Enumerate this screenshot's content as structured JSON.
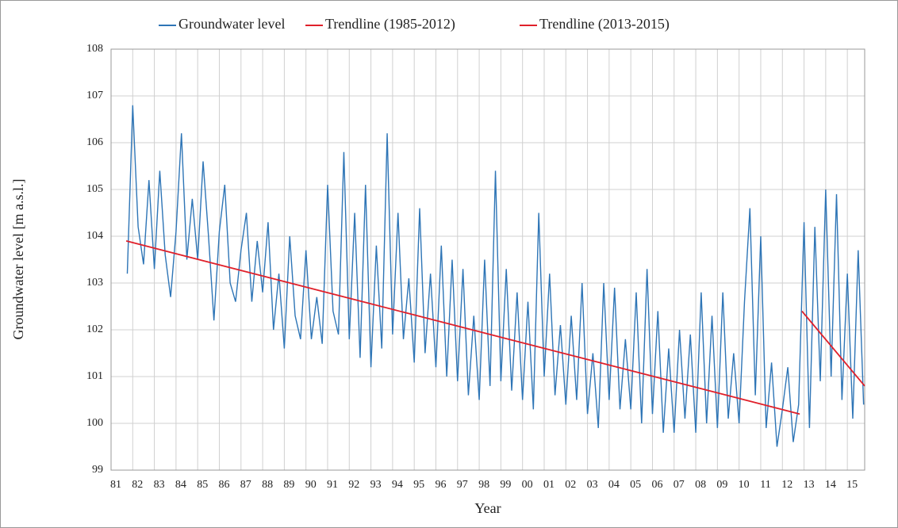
{
  "chart_data": {
    "type": "line",
    "y_label": "Groundwater level [m a.s.l.]",
    "x_label": "Year",
    "xlim": [
      1981,
      2015.8
    ],
    "ylim": [
      99,
      108
    ],
    "xticks": [
      {
        "value": 1981,
        "label": "81"
      },
      {
        "value": 1982,
        "label": "82"
      },
      {
        "value": 1983,
        "label": "83"
      },
      {
        "value": 1984,
        "label": "84"
      },
      {
        "value": 1985,
        "label": "85"
      },
      {
        "value": 1986,
        "label": "86"
      },
      {
        "value": 1987,
        "label": "87"
      },
      {
        "value": 1988,
        "label": "88"
      },
      {
        "value": 1989,
        "label": "89"
      },
      {
        "value": 1990,
        "label": "90"
      },
      {
        "value": 1991,
        "label": "91"
      },
      {
        "value": 1992,
        "label": "92"
      },
      {
        "value": 1993,
        "label": "93"
      },
      {
        "value": 1994,
        "label": "94"
      },
      {
        "value": 1995,
        "label": "95"
      },
      {
        "value": 1996,
        "label": "96"
      },
      {
        "value": 1997,
        "label": "97"
      },
      {
        "value": 1998,
        "label": "98"
      },
      {
        "value": 1999,
        "label": "99"
      },
      {
        "value": 2000,
        "label": "00"
      },
      {
        "value": 2001,
        "label": "01"
      },
      {
        "value": 2002,
        "label": "02"
      },
      {
        "value": 2003,
        "label": "03"
      },
      {
        "value": 2004,
        "label": "04"
      },
      {
        "value": 2005,
        "label": "05"
      },
      {
        "value": 2006,
        "label": "06"
      },
      {
        "value": 2007,
        "label": "07"
      },
      {
        "value": 2008,
        "label": "08"
      },
      {
        "value": 2009,
        "label": "09"
      },
      {
        "value": 2010,
        "label": "10"
      },
      {
        "value": 2011,
        "label": "11"
      },
      {
        "value": 2012,
        "label": "12"
      },
      {
        "value": 2013,
        "label": "13"
      },
      {
        "value": 2014,
        "label": "14"
      },
      {
        "value": 2015,
        "label": "15"
      }
    ],
    "yticks": [
      99,
      100,
      101,
      102,
      103,
      104,
      105,
      106,
      107,
      108
    ],
    "grid": true,
    "legend": "top",
    "series": [
      {
        "name": "Groundwater level",
        "color": "#2e75b6",
        "x": [
          1981.75,
          1982,
          1982.25,
          1982.5,
          1982.75,
          1983,
          1983.25,
          1983.5,
          1983.75,
          1984,
          1984.25,
          1984.5,
          1984.75,
          1985,
          1985.25,
          1985.5,
          1985.75,
          1986,
          1986.25,
          1986.5,
          1986.75,
          1987,
          1987.25,
          1987.5,
          1987.75,
          1988,
          1988.25,
          1988.5,
          1988.75,
          1989,
          1989.25,
          1989.5,
          1989.75,
          1990,
          1990.25,
          1990.5,
          1990.75,
          1991,
          1991.25,
          1991.5,
          1991.75,
          1992,
          1992.25,
          1992.5,
          1992.75,
          1993,
          1993.25,
          1993.5,
          1993.75,
          1994,
          1994.25,
          1994.5,
          1994.75,
          1995,
          1995.25,
          1995.5,
          1995.75,
          1996,
          1996.25,
          1996.5,
          1996.75,
          1997,
          1997.25,
          1997.5,
          1997.75,
          1998,
          1998.25,
          1998.5,
          1998.75,
          1999,
          1999.25,
          1999.5,
          1999.75,
          2000,
          2000.25,
          2000.5,
          2000.75,
          2001,
          2001.25,
          2001.5,
          2001.75,
          2002,
          2002.25,
          2002.5,
          2002.75,
          2003,
          2003.25,
          2003.5,
          2003.75,
          2004,
          2004.25,
          2004.5,
          2004.75,
          2005,
          2005.25,
          2005.5,
          2005.75,
          2006,
          2006.25,
          2006.5,
          2006.75,
          2007,
          2007.25,
          2007.5,
          2007.75,
          2008,
          2008.25,
          2008.5,
          2008.75,
          2009,
          2009.25,
          2009.5,
          2009.75,
          2010,
          2010.25,
          2010.5,
          2010.75,
          2011,
          2011.25,
          2011.5,
          2011.75,
          2012,
          2012.25,
          2012.5,
          2012.75,
          2013,
          2013.25,
          2013.5,
          2013.75,
          2014,
          2014.25,
          2014.5,
          2014.75,
          2015,
          2015.25,
          2015.5,
          2015.75
        ],
        "values": [
          103.2,
          106.8,
          104.2,
          103.4,
          105.2,
          103.3,
          105.4,
          103.6,
          102.7,
          104.1,
          106.2,
          103.5,
          104.8,
          103.5,
          105.6,
          104.0,
          102.2,
          104.1,
          105.1,
          103.0,
          102.6,
          103.7,
          104.5,
          102.6,
          103.9,
          102.8,
          104.3,
          102.0,
          103.2,
          101.6,
          104.0,
          102.3,
          101.8,
          103.7,
          101.8,
          102.7,
          101.7,
          105.1,
          102.4,
          101.9,
          105.8,
          101.8,
          104.5,
          101.4,
          105.1,
          101.2,
          103.8,
          101.6,
          106.2,
          101.9,
          104.5,
          101.8,
          103.1,
          101.3,
          104.6,
          101.5,
          103.2,
          101.2,
          103.8,
          101.0,
          103.5,
          100.9,
          103.3,
          100.6,
          102.3,
          100.5,
          103.5,
          100.8,
          105.4,
          100.9,
          103.3,
          100.7,
          102.8,
          100.5,
          102.6,
          100.3,
          104.5,
          101.0,
          103.2,
          100.6,
          102.1,
          100.4,
          102.3,
          100.5,
          103.0,
          100.2,
          101.5,
          99.9,
          103.0,
          100.5,
          102.9,
          100.3,
          101.8,
          100.3,
          102.8,
          100.0,
          103.3,
          100.2,
          102.4,
          99.8,
          101.6,
          99.8,
          102.0,
          100.1,
          101.9,
          99.8,
          102.8,
          100.0,
          102.3,
          99.9,
          102.8,
          100.1,
          101.5,
          100.0,
          102.6,
          104.6,
          100.6,
          104.0,
          99.9,
          101.3,
          99.5,
          100.3,
          101.2,
          99.6,
          100.4,
          104.3,
          99.9,
          104.2,
          100.9,
          105.0,
          101.0,
          104.9,
          100.5,
          103.2,
          100.1,
          103.7,
          100.4
        ]
      },
      {
        "name": "Trendline (1985-2012)",
        "color": "#e0202a",
        "x": [
          1981.7,
          2012.8
        ],
        "values": [
          103.9,
          100.2
        ]
      },
      {
        "name": "Trendline (2013-2015)",
        "color": "#e0202a",
        "x": [
          2012.9,
          2015.8
        ],
        "values": [
          102.4,
          100.8
        ]
      }
    ]
  }
}
